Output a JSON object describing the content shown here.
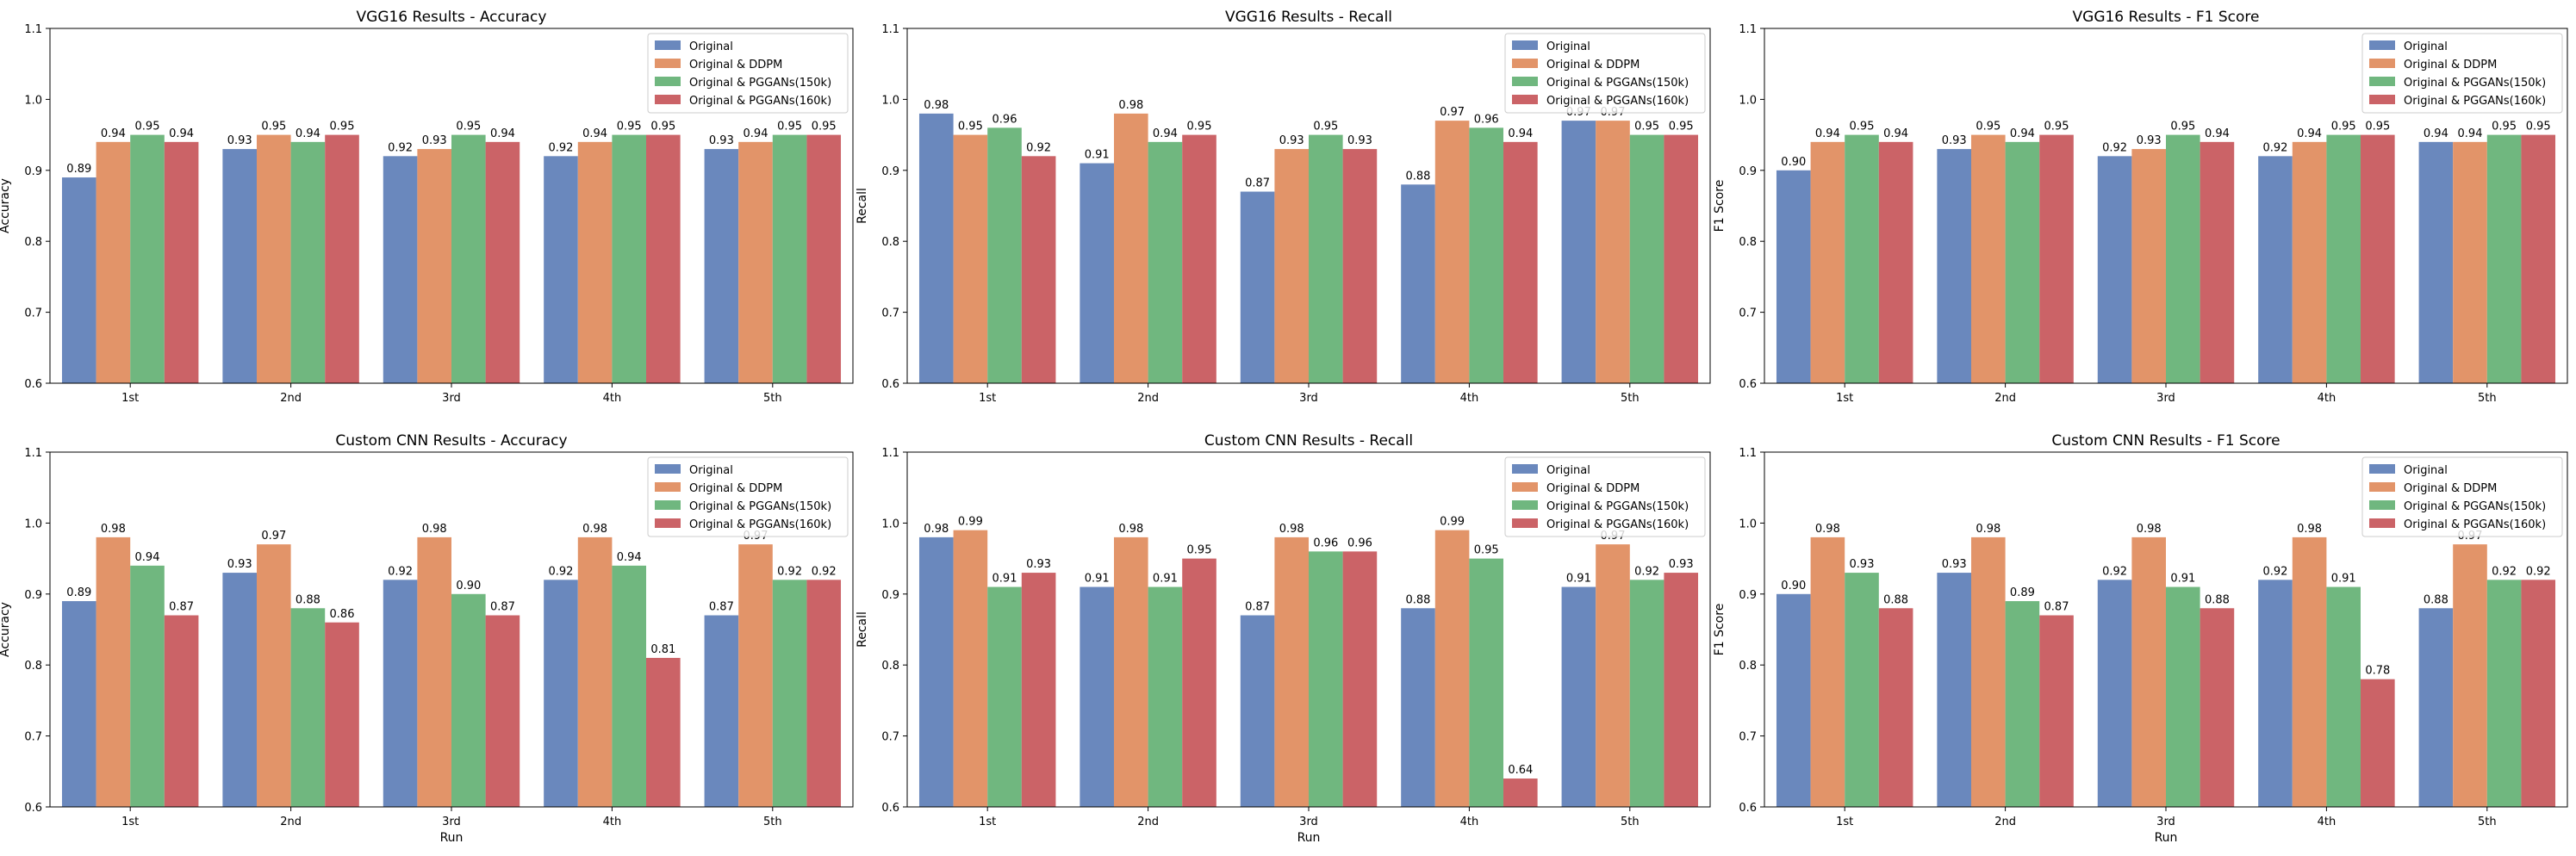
{
  "figure": {
    "legend_position": "top-right",
    "legend_entries": [
      "Original",
      "Original & DDPM",
      "Original & PGGANs(150k)",
      "Original & PGGANs(160k)"
    ],
    "series_colors": [
      "#6a88bd",
      "#e29469",
      "#70b77f",
      "#cb6367"
    ]
  },
  "chart_data": [
    {
      "type": "bar",
      "title": "VGG16 Results - Accuracy",
      "xlabel": "",
      "ylabel": "Accuracy",
      "ylim": [
        0.6,
        1.1
      ],
      "yticks": [
        "0.6",
        "0.7",
        "0.8",
        "0.9",
        "1.0",
        "1.1"
      ],
      "categories": [
        "1st",
        "2nd",
        "3rd",
        "4th",
        "5th"
      ],
      "legend": "top-right",
      "grid": false,
      "series": [
        {
          "name": "Original",
          "values": [
            0.89,
            0.93,
            0.92,
            0.92,
            0.93
          ]
        },
        {
          "name": "Original & DDPM",
          "values": [
            0.94,
            0.95,
            0.93,
            0.94,
            0.94
          ]
        },
        {
          "name": "Original & PGGANs(150k)",
          "values": [
            0.95,
            0.94,
            0.95,
            0.95,
            0.95
          ]
        },
        {
          "name": "Original & PGGANs(160k)",
          "values": [
            0.94,
            0.95,
            0.94,
            0.95,
            0.95
          ]
        }
      ]
    },
    {
      "type": "bar",
      "title": "VGG16 Results - Recall",
      "xlabel": "",
      "ylabel": "Recall",
      "ylim": [
        0.6,
        1.1
      ],
      "yticks": [
        "0.6",
        "0.7",
        "0.8",
        "0.9",
        "1.0",
        "1.1"
      ],
      "categories": [
        "1st",
        "2nd",
        "3rd",
        "4th",
        "5th"
      ],
      "legend": "top-right",
      "grid": false,
      "series": [
        {
          "name": "Original",
          "values": [
            0.98,
            0.91,
            0.87,
            0.88,
            0.97
          ]
        },
        {
          "name": "Original & DDPM",
          "values": [
            0.95,
            0.98,
            0.93,
            0.97,
            0.97
          ]
        },
        {
          "name": "Original & PGGANs(150k)",
          "values": [
            0.96,
            0.94,
            0.95,
            0.96,
            0.95
          ]
        },
        {
          "name": "Original & PGGANs(160k)",
          "values": [
            0.92,
            0.95,
            0.93,
            0.94,
            0.95
          ]
        }
      ]
    },
    {
      "type": "bar",
      "title": "VGG16 Results - F1 Score",
      "xlabel": "",
      "ylabel": "F1 Score",
      "ylim": [
        0.6,
        1.1
      ],
      "yticks": [
        "0.6",
        "0.7",
        "0.8",
        "0.9",
        "1.0",
        "1.1"
      ],
      "categories": [
        "1st",
        "2nd",
        "3rd",
        "4th",
        "5th"
      ],
      "legend": "top-right",
      "grid": false,
      "series": [
        {
          "name": "Original",
          "values": [
            0.9,
            0.93,
            0.92,
            0.92,
            0.94
          ]
        },
        {
          "name": "Original & DDPM",
          "values": [
            0.94,
            0.95,
            0.93,
            0.94,
            0.94
          ]
        },
        {
          "name": "Original & PGGANs(150k)",
          "values": [
            0.95,
            0.94,
            0.95,
            0.95,
            0.95
          ]
        },
        {
          "name": "Original & PGGANs(160k)",
          "values": [
            0.94,
            0.95,
            0.94,
            0.95,
            0.95
          ]
        }
      ]
    },
    {
      "type": "bar",
      "title": "Custom CNN Results - Accuracy",
      "xlabel": "Run",
      "ylabel": "Accuracy",
      "ylim": [
        0.6,
        1.1
      ],
      "yticks": [
        "0.6",
        "0.7",
        "0.8",
        "0.9",
        "1.0",
        "1.1"
      ],
      "categories": [
        "1st",
        "2nd",
        "3rd",
        "4th",
        "5th"
      ],
      "legend": "top-right",
      "grid": false,
      "series": [
        {
          "name": "Original",
          "values": [
            0.89,
            0.93,
            0.92,
            0.92,
            0.87
          ]
        },
        {
          "name": "Original & DDPM",
          "values": [
            0.98,
            0.97,
            0.98,
            0.98,
            0.97
          ]
        },
        {
          "name": "Original & PGGANs(150k)",
          "values": [
            0.94,
            0.88,
            0.9,
            0.94,
            0.92
          ]
        },
        {
          "name": "Original & PGGANs(160k)",
          "values": [
            0.87,
            0.86,
            0.87,
            0.81,
            0.92
          ]
        }
      ]
    },
    {
      "type": "bar",
      "title": "Custom CNN Results - Recall",
      "xlabel": "Run",
      "ylabel": "Recall",
      "ylim": [
        0.6,
        1.1
      ],
      "yticks": [
        "0.6",
        "0.7",
        "0.8",
        "0.9",
        "1.0",
        "1.1"
      ],
      "categories": [
        "1st",
        "2nd",
        "3rd",
        "4th",
        "5th"
      ],
      "legend": "top-right",
      "grid": false,
      "series": [
        {
          "name": "Original",
          "values": [
            0.98,
            0.91,
            0.87,
            0.88,
            0.91
          ]
        },
        {
          "name": "Original & DDPM",
          "values": [
            0.99,
            0.98,
            0.98,
            0.99,
            0.97
          ]
        },
        {
          "name": "Original & PGGANs(150k)",
          "values": [
            0.91,
            0.91,
            0.96,
            0.95,
            0.92
          ]
        },
        {
          "name": "Original & PGGANs(160k)",
          "values": [
            0.93,
            0.95,
            0.96,
            0.64,
            0.93
          ]
        }
      ]
    },
    {
      "type": "bar",
      "title": "Custom CNN Results - F1 Score",
      "xlabel": "Run",
      "ylabel": "F1 Score",
      "ylim": [
        0.6,
        1.1
      ],
      "yticks": [
        "0.6",
        "0.7",
        "0.8",
        "0.9",
        "1.0",
        "1.1"
      ],
      "categories": [
        "1st",
        "2nd",
        "3rd",
        "4th",
        "5th"
      ],
      "legend": "top-right",
      "grid": false,
      "series": [
        {
          "name": "Original",
          "values": [
            0.9,
            0.93,
            0.92,
            0.92,
            0.88
          ]
        },
        {
          "name": "Original & DDPM",
          "values": [
            0.98,
            0.98,
            0.98,
            0.98,
            0.97
          ]
        },
        {
          "name": "Original & PGGANs(150k)",
          "values": [
            0.93,
            0.89,
            0.91,
            0.91,
            0.92
          ]
        },
        {
          "name": "Original & PGGANs(160k)",
          "values": [
            0.88,
            0.87,
            0.88,
            0.78,
            0.92
          ]
        }
      ]
    }
  ]
}
